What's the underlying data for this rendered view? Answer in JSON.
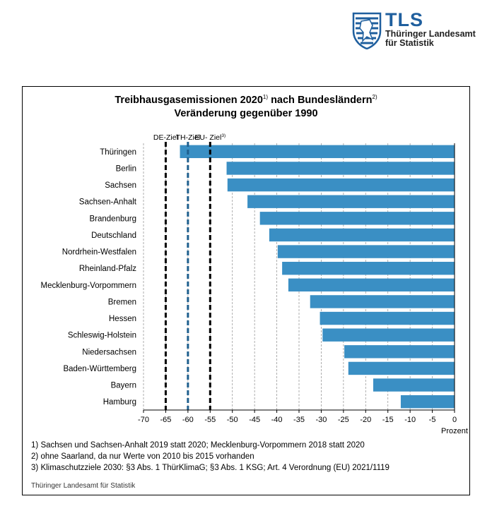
{
  "logo": {
    "abbr": "TLS",
    "line1": "Thüringer Landesamt",
    "line2": "für Statistik"
  },
  "chart_data": {
    "type": "bar",
    "orientation": "horizontal",
    "title": "Treibhausgasemissionen 2020",
    "title_sup1": "1)",
    "title_mid": " nach Bundesländern",
    "title_sup2": "2)",
    "subtitle": "Veränderung gegenüber 1990",
    "xlabel": "Prozent",
    "xlim": [
      -70,
      0
    ],
    "xticks": [
      -70,
      -65,
      -60,
      -55,
      -50,
      -45,
      -40,
      -35,
      -30,
      -25,
      -20,
      -15,
      -10,
      -5,
      0
    ],
    "grid": true,
    "bar_color": "#3a8fc4",
    "categories": [
      "Thüringen",
      "Berlin",
      "Sachsen",
      "Sachsen-Anhalt",
      "Brandenburg",
      "Deutschland",
      "Nordrhein-Westfalen",
      "Rheinland-Pfalz",
      "Mecklenburg-Vorpommern",
      "Bremen",
      "Hessen",
      "Schleswig-Holstein",
      "Niedersachsen",
      "Baden-Württemberg",
      "Bayern",
      "Hamburg"
    ],
    "values": [
      -61.8,
      -51.3,
      -51.1,
      -46.6,
      -43.8,
      -41.7,
      -39.8,
      -38.8,
      -37.4,
      -32.5,
      -30.3,
      -29.7,
      -24.8,
      -23.9,
      -18.3,
      -12.1
    ],
    "reference_lines": [
      {
        "label": "DE-Ziel",
        "sup": "",
        "value": -65,
        "color": "#000000"
      },
      {
        "label": "TH-Ziel",
        "sup": "",
        "value": -60,
        "color": "#1f5f8e"
      },
      {
        "label": "EU- Ziel",
        "sup": "3)",
        "value": -55,
        "color": "#000000"
      }
    ]
  },
  "footnotes": [
    {
      "num": "1)",
      "text": "Sachsen und Sachsen-Anhalt 2019 statt 2020; Mecklenburg-Vorpommern 2018 statt 2020"
    },
    {
      "num": "2)",
      "text": "ohne Saarland, da nur Werte von 2010 bis 2015 vorhanden"
    },
    {
      "num": "3)",
      "text": "Klimaschutzziele 2030: §3 Abs. 1 ThürKlimaG; §3 Abs. 1 KSG;  Art. 4 Verordnung (EU) 2021/1119"
    }
  ],
  "source": "Thüringer Landesamt für Statistik"
}
